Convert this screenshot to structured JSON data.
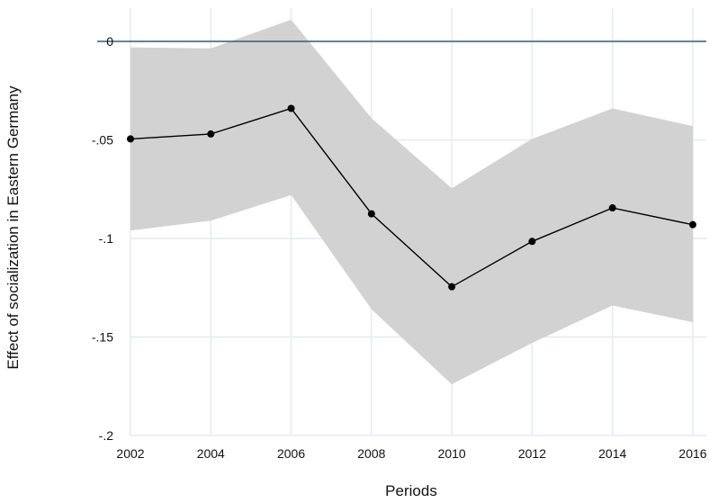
{
  "chart_data": {
    "type": "line",
    "title": "",
    "xlabel": "Periods",
    "ylabel": "Effect of socialization in Eastern Germany",
    "x": [
      2002,
      2004,
      2006,
      2008,
      2010,
      2012,
      2014,
      2016
    ],
    "x_ticks": [
      "2002",
      "2004",
      "2006",
      "2008",
      "2010",
      "2012",
      "2014",
      "2016"
    ],
    "y_ticks": [
      {
        "value": 0,
        "label": "0"
      },
      {
        "value": -0.05,
        "label": "-.05"
      },
      {
        "value": -0.1,
        "label": "-.1"
      },
      {
        "value": -0.15,
        "label": "-.15"
      },
      {
        "value": -0.2,
        "label": "-.2"
      }
    ],
    "xlim": [
      2002,
      2016
    ],
    "ylim": [
      -0.2,
      0.017
    ],
    "grid": true,
    "reference_line": {
      "y": 0,
      "color": "#3b5b78"
    },
    "series": [
      {
        "values": [
          -0.0495,
          -0.047,
          -0.034,
          -0.0875,
          -0.1245,
          -0.1015,
          -0.0845,
          -0.093
        ],
        "color": "#000000"
      }
    ],
    "confidence_band": {
      "upper": [
        -0.003,
        -0.0035,
        0.011,
        -0.039,
        -0.0745,
        -0.0495,
        -0.034,
        -0.043
      ],
      "lower": [
        -0.096,
        -0.091,
        -0.078,
        -0.136,
        -0.174,
        -0.153,
        -0.134,
        -0.1425
      ],
      "color": "#d2d2d2"
    }
  }
}
